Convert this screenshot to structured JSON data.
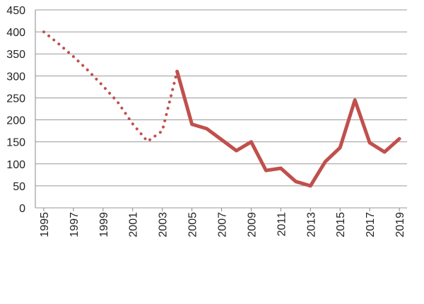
{
  "chart_data": {
    "type": "line",
    "x": [
      1995,
      1996,
      1997,
      1998,
      1999,
      2000,
      2001,
      2002,
      2003,
      2004,
      2005,
      2006,
      2007,
      2008,
      2009,
      2010,
      2011,
      2012,
      2013,
      2014,
      2015,
      2016,
      2017,
      2018,
      2019
    ],
    "series": [
      {
        "color": "#c0504d",
        "style": "dotted",
        "values": [
          400,
          373,
          344,
          312,
          277,
          240,
          191,
          151,
          175,
          310,
          null,
          null,
          null,
          null,
          null,
          null,
          null,
          null,
          null,
          null,
          null,
          null,
          null,
          null,
          null
        ]
      },
      {
        "color": "#c0504d",
        "style": "solid",
        "values": [
          null,
          null,
          null,
          null,
          null,
          null,
          null,
          null,
          null,
          310,
          190,
          180,
          155,
          130,
          150,
          85,
          90,
          60,
          50,
          105,
          137,
          245,
          148,
          127,
          157
        ]
      }
    ],
    "xlim": [
      1994.43,
      2019.52
    ],
    "xticks": [
      1995,
      1997,
      1999,
      2001,
      2003,
      2005,
      2007,
      2009,
      2011,
      2013,
      2015,
      2017,
      2019
    ],
    "ylim": [
      0,
      450
    ],
    "yticks": [
      0,
      50,
      100,
      150,
      200,
      250,
      300,
      350,
      400,
      450
    ],
    "grid": true
  }
}
